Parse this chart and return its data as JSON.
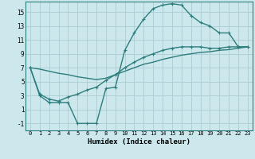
{
  "xlabel": "Humidex (Indice chaleur)",
  "bg_color": "#cce8ec",
  "grid_color": "#aaccd4",
  "line_color": "#2d7d7d",
  "xlim": [
    -0.5,
    23.5
  ],
  "ylim": [
    -2.0,
    16.5
  ],
  "xticks": [
    0,
    1,
    2,
    3,
    4,
    5,
    6,
    7,
    8,
    9,
    10,
    11,
    12,
    13,
    14,
    15,
    16,
    17,
    18,
    19,
    20,
    21,
    22,
    23
  ],
  "yticks": [
    -1,
    1,
    3,
    5,
    7,
    9,
    11,
    13,
    15
  ],
  "line1_x": [
    0,
    1,
    2,
    3,
    4,
    5,
    6,
    7,
    8,
    9,
    10,
    11,
    12,
    13,
    14,
    15,
    16,
    17,
    18,
    19,
    20,
    21,
    22,
    23
  ],
  "line1_y": [
    7.0,
    3.0,
    2.0,
    2.0,
    2.0,
    -1.0,
    -1.0,
    -1.0,
    4.0,
    4.2,
    9.5,
    12.0,
    14.0,
    15.5,
    16.0,
    16.2,
    16.0,
    14.5,
    13.5,
    13.0,
    12.0,
    12.0,
    10.0,
    10.0
  ],
  "line2_x": [
    0,
    1,
    2,
    3,
    4,
    5,
    6,
    7,
    8,
    9,
    10,
    11,
    12,
    13,
    14,
    15,
    16,
    17,
    18,
    19,
    20,
    21,
    22,
    23
  ],
  "line2_y": [
    7.0,
    3.2,
    2.5,
    2.2,
    2.8,
    3.2,
    3.8,
    4.2,
    5.2,
    6.0,
    7.0,
    7.8,
    8.5,
    9.0,
    9.5,
    9.8,
    10.0,
    10.0,
    10.0,
    9.8,
    9.8,
    10.0,
    10.0,
    10.0
  ],
  "line3_x": [
    0,
    1,
    2,
    3,
    4,
    5,
    6,
    7,
    8,
    9,
    10,
    11,
    12,
    13,
    14,
    15,
    16,
    17,
    18,
    19,
    20,
    21,
    22,
    23
  ],
  "line3_y": [
    7.0,
    6.8,
    6.5,
    6.2,
    6.0,
    5.7,
    5.5,
    5.3,
    5.5,
    6.0,
    6.5,
    7.0,
    7.5,
    7.8,
    8.2,
    8.5,
    8.8,
    9.0,
    9.2,
    9.3,
    9.5,
    9.6,
    9.8,
    10.0
  ]
}
